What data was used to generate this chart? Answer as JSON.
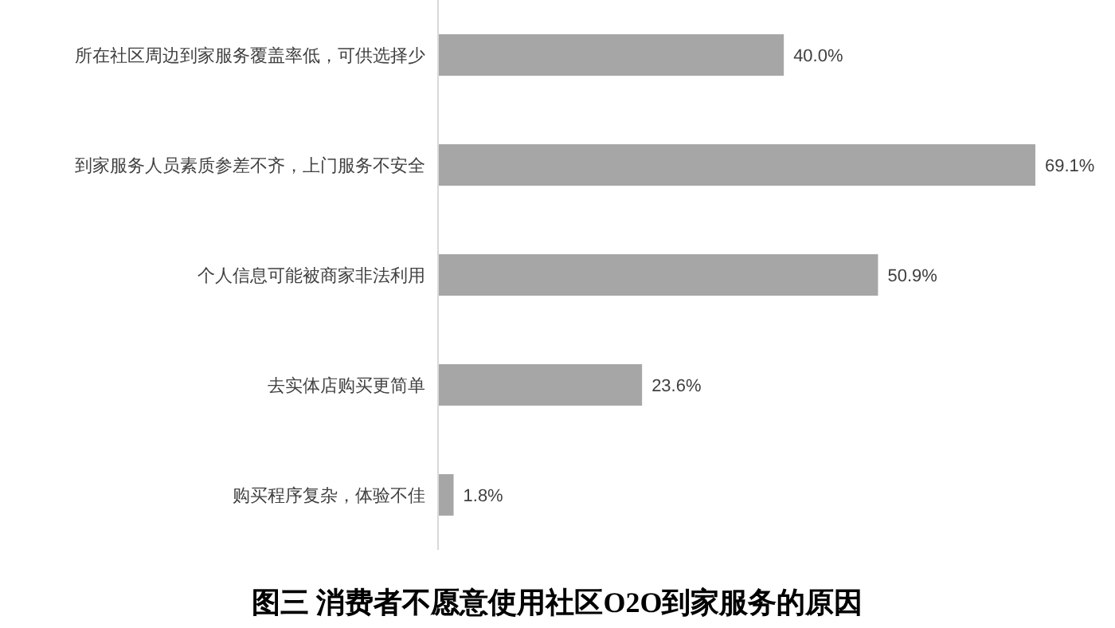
{
  "chart_data": {
    "type": "bar",
    "orientation": "horizontal",
    "title": "图三 消费者不愿意使用社区O2O到家服务的原因",
    "categories": [
      "所在社区周边到家服务覆盖率低，可供选择少",
      "到家服务人员素质参差不齐，上门服务不安全",
      "个人信息可能被商家非法利用",
      "去实体店购买更简单",
      "购买程序复杂，体验不佳"
    ],
    "values": [
      40.0,
      69.1,
      50.9,
      23.6,
      1.8
    ],
    "value_labels": [
      "40.0%",
      "69.1%",
      "50.9%",
      "23.6%",
      "1.8%"
    ],
    "color": "#a6a6a6"
  }
}
